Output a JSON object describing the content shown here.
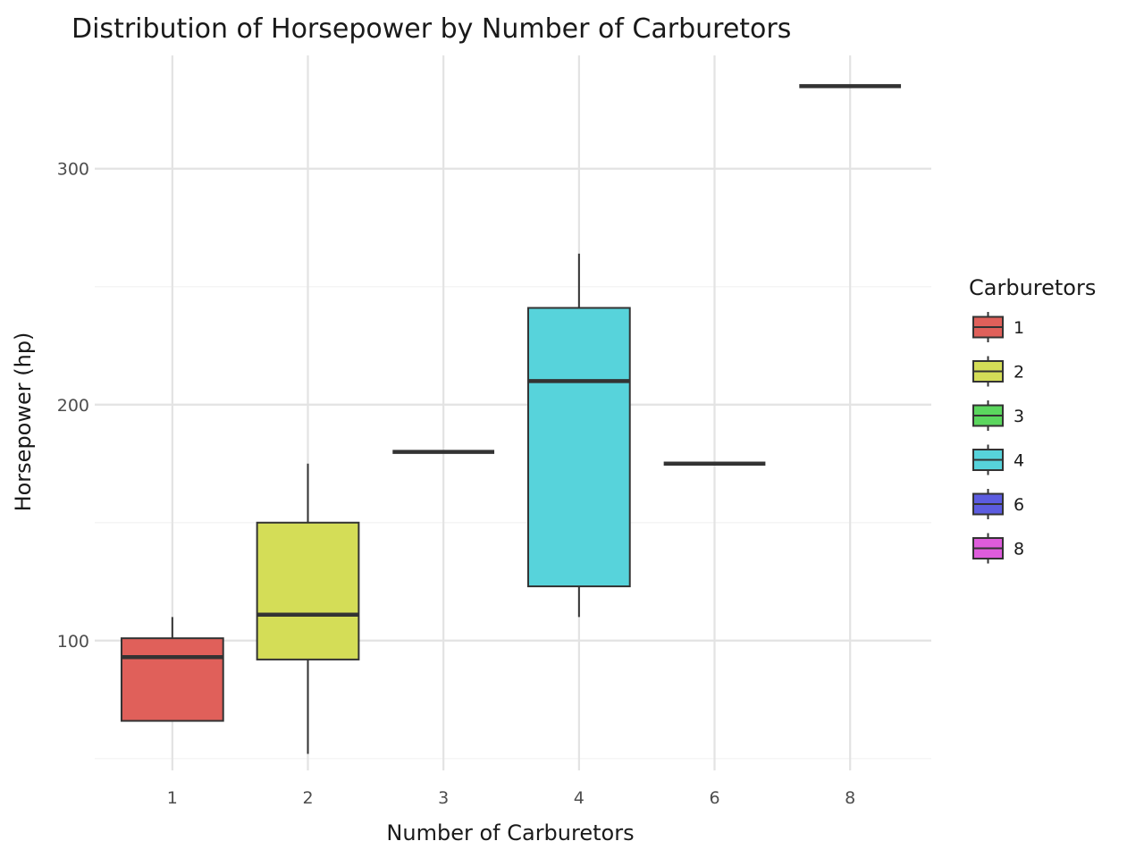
{
  "chart_data": {
    "type": "box",
    "title": "Distribution of Horsepower by Number of Carburetors",
    "xlabel": "Number of Carburetors",
    "ylabel": "Horsepower (hp)",
    "categories": [
      "1",
      "2",
      "3",
      "4",
      "6",
      "8"
    ],
    "ylim": [
      45,
      348
    ],
    "y_ticks": [
      100,
      200,
      300
    ],
    "y_tick_labels": [
      "100",
      "200",
      "300"
    ],
    "grid": true,
    "legend": {
      "title": "Carburetors",
      "position": "right",
      "items": [
        "1",
        "2",
        "3",
        "4",
        "6",
        "8"
      ]
    },
    "colors": {
      "1": "#E0605A",
      "2": "#D4DD57",
      "3": "#5BD65E",
      "4": "#57D3DB",
      "6": "#5C5CE0",
      "8": "#DE5CDC"
    },
    "boxes": [
      {
        "category": "1",
        "min": 66,
        "q1": 66,
        "median": 93,
        "q3": 101,
        "max": 110
      },
      {
        "category": "2",
        "min": 52,
        "q1": 92,
        "median": 111,
        "q3": 150,
        "max": 175
      },
      {
        "category": "3",
        "min": 180,
        "q1": 180,
        "median": 180,
        "q3": 180,
        "max": 180
      },
      {
        "category": "4",
        "min": 110,
        "q1": 123,
        "median": 210,
        "q3": 241,
        "max": 264
      },
      {
        "category": "6",
        "min": 175,
        "q1": 175,
        "median": 175,
        "q3": 175,
        "max": 175
      },
      {
        "category": "8",
        "min": 335,
        "q1": 335,
        "median": 335,
        "q3": 335,
        "max": 335
      }
    ]
  }
}
